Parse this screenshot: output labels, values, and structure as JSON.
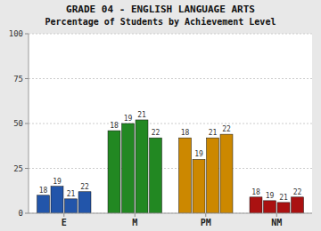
{
  "chart_data": {
    "type": "bar",
    "title": "GRADE 04 - ENGLISH LANGUAGE ARTS",
    "subtitle": "Percentage of Students by Achievement Level",
    "categories": [
      "E",
      "M",
      "PM",
      "NM"
    ],
    "series": [
      {
        "name": "18",
        "values": [
          10,
          46,
          42,
          9
        ],
        "colors": [
          "#2255aa",
          "#228822",
          "#cc8800",
          "#aa1111"
        ]
      },
      {
        "name": "19",
        "values": [
          15,
          50,
          30,
          7
        ],
        "colors": [
          "#2255aa",
          "#228822",
          "#cc8800",
          "#aa1111"
        ]
      },
      {
        "name": "21",
        "values": [
          8,
          52,
          42,
          6
        ],
        "colors": [
          "#2255aa",
          "#228822",
          "#cc8800",
          "#aa1111"
        ]
      },
      {
        "name": "22",
        "values": [
          12,
          42,
          44,
          9
        ],
        "colors": [
          "#2255aa",
          "#228822",
          "#cc8800",
          "#aa1111"
        ]
      }
    ],
    "ylim": [
      0,
      100
    ],
    "yticks": [
      0,
      25,
      50,
      75,
      100
    ],
    "grid": true
  }
}
